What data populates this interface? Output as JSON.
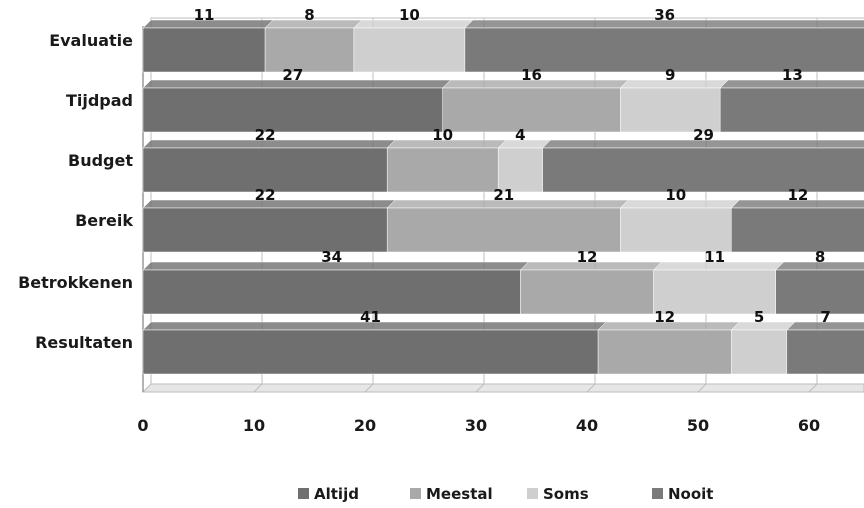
{
  "chart_data": {
    "type": "bar",
    "orientation": "horizontal",
    "stacked": true,
    "categories": [
      "Evaluatie",
      "Tijdpad",
      "Budget",
      "Bereik",
      "Betrokkenen",
      "Resultaten"
    ],
    "series": [
      {
        "name": "Altijd",
        "color": "#6f6f6f",
        "values": [
          11,
          27,
          22,
          22,
          34,
          41
        ]
      },
      {
        "name": "Meestal",
        "color": "#a9a9a9",
        "values": [
          8,
          16,
          10,
          21,
          12,
          12
        ]
      },
      {
        "name": "Soms",
        "color": "#cfcfcf",
        "values": [
          10,
          9,
          4,
          10,
          11,
          5
        ]
      },
      {
        "name": "Nooit",
        "color": "#7a7a7a",
        "values": [
          36,
          13,
          29,
          12,
          8,
          7
        ]
      }
    ],
    "x_ticks": [
      "0",
      "10",
      "20",
      "30",
      "40",
      "50",
      "60"
    ],
    "xlim": [
      0,
      65
    ],
    "legend_position": "bottom",
    "grid": true
  }
}
